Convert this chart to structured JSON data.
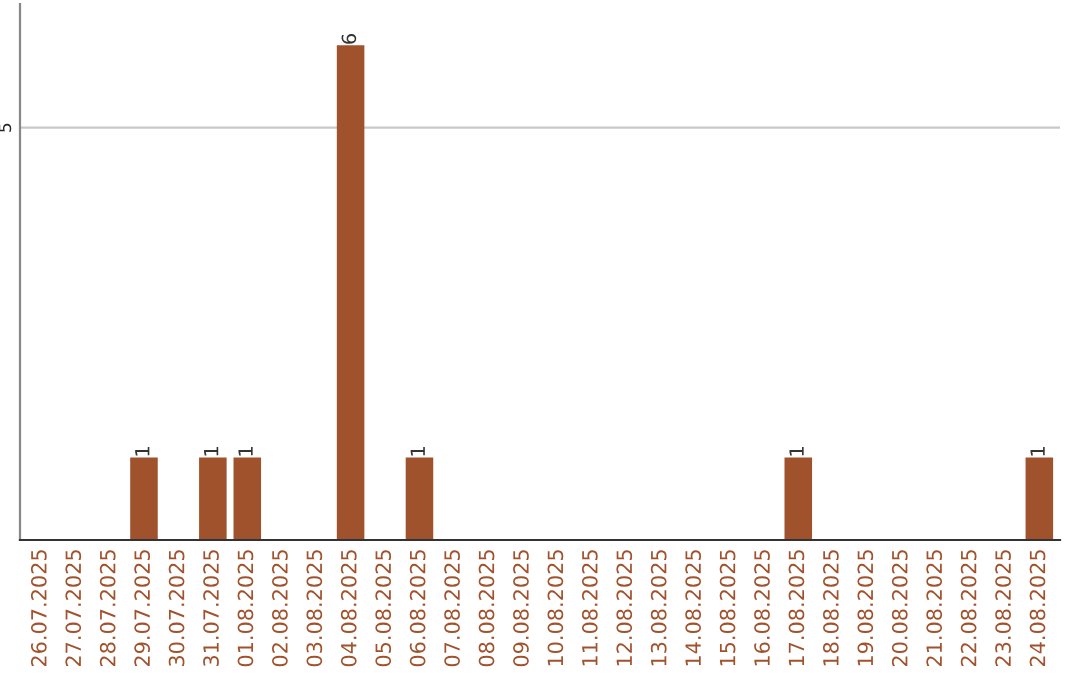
{
  "chart_data": {
    "type": "bar",
    "categories": [
      "26.07.2025",
      "27.07.2025",
      "28.07.2025",
      "29.07.2025",
      "30.07.2025",
      "31.07.2025",
      "01.08.2025",
      "02.08.2025",
      "03.08.2025",
      "04.08.2025",
      "05.08.2025",
      "06.08.2025",
      "07.08.2025",
      "08.08.2025",
      "09.08.2025",
      "10.08.2025",
      "11.08.2025",
      "12.08.2025",
      "13.08.2025",
      "14.08.2025",
      "15.08.2025",
      "16.08.2025",
      "17.08.2025",
      "18.08.2025",
      "19.08.2025",
      "20.08.2025",
      "21.08.2025",
      "22.08.2025",
      "23.08.2025",
      "24.08.2025"
    ],
    "values": [
      0,
      0,
      0,
      1,
      0,
      1,
      1,
      0,
      0,
      6,
      0,
      1,
      0,
      0,
      0,
      0,
      0,
      0,
      0,
      0,
      0,
      0,
      1,
      0,
      0,
      0,
      0,
      0,
      0,
      1
    ],
    "value_labels": [
      null,
      null,
      null,
      "1",
      null,
      "1",
      "1",
      null,
      null,
      "6",
      null,
      "1",
      null,
      null,
      null,
      null,
      null,
      null,
      null,
      null,
      null,
      null,
      "1",
      null,
      null,
      null,
      null,
      null,
      null,
      "1"
    ],
    "color": "#a0522d",
    "ylim": [
      0,
      6.5
    ],
    "yticks": [
      5
    ],
    "grid": "y",
    "legend": false
  }
}
